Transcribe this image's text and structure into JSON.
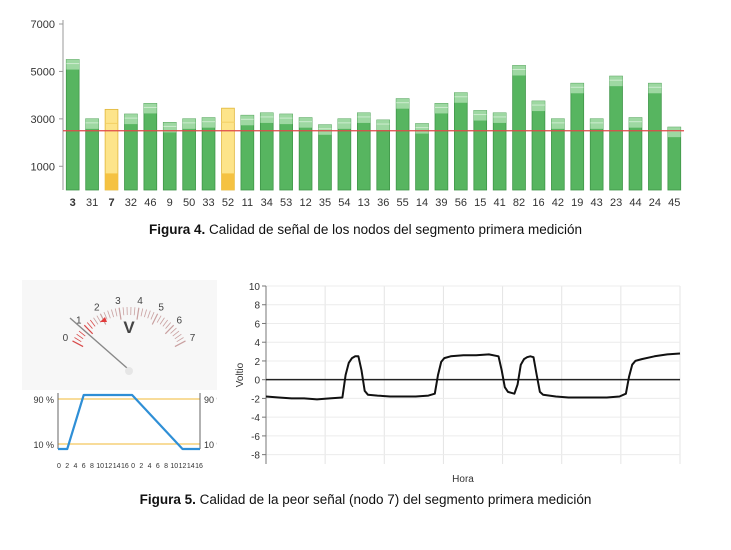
{
  "figure4": {
    "caption_label": "Figura 4.",
    "caption_text": " Calidad de señal de los nodos del segmento primera medición"
  },
  "figure5": {
    "caption_label": "Figura 5.",
    "caption_text": " Calidad de la peor señal (nodo 7) del segmento primera medición",
    "meter": {
      "unit": "V",
      "scale_labels": [
        "0",
        "1",
        "2",
        "3",
        "4",
        "5",
        "6",
        "7"
      ]
    },
    "ramp": {
      "left_labels": [
        "90 %",
        "10 %"
      ],
      "right_labels": [
        "90 %",
        "10 %"
      ],
      "x_ticks": [
        "0",
        "2",
        "4",
        "6",
        "8",
        "10",
        "12",
        "14",
        "16",
        "0",
        "2",
        "4",
        "6",
        "8",
        "10",
        "12",
        "14",
        "16"
      ]
    }
  },
  "chart_data": [
    {
      "type": "bar",
      "title": "",
      "xlabel": "",
      "ylabel": "",
      "ylim": [
        0,
        7000
      ],
      "y_ticks": [
        1000,
        3000,
        5000,
        7000
      ],
      "y_tick_labels": [
        "1000",
        "3000",
        "5000",
        "7000"
      ],
      "threshold": 2500,
      "threshold_color": "#e04848",
      "categories": [
        "3",
        "31",
        "7",
        "32",
        "46",
        "9",
        "50",
        "33",
        "52",
        "11",
        "34",
        "53",
        "12",
        "35",
        "54",
        "13",
        "36",
        "55",
        "14",
        "39",
        "56",
        "15",
        "41",
        "82",
        "16",
        "42",
        "19",
        "43",
        "23",
        "44",
        "24",
        "45"
      ],
      "bold_categories": [
        "3",
        "7"
      ],
      "warning_categories": [
        "7",
        "52"
      ],
      "values": [
        5500,
        3000,
        3400,
        3200,
        3650,
        2850,
        3000,
        3050,
        3450,
        3150,
        3250,
        3200,
        3050,
        2750,
        3000,
        3250,
        2950,
        3850,
        2800,
        3650,
        4100,
        3350,
        3250,
        5250,
        3750,
        3000,
        4500,
        3000,
        4800,
        3050,
        4500,
        2650
      ],
      "colors": {
        "good": "#57b560",
        "good_top": "#9ed8a2",
        "warning": "#fde48a",
        "warning_bottom": "#f5c242"
      }
    },
    {
      "type": "line",
      "title": "",
      "xlabel": "Hora",
      "ylabel": "Voltio",
      "ylim": [
        -9,
        10
      ],
      "y_ticks": [
        10,
        8,
        6,
        4,
        2,
        0,
        -2,
        -4,
        -6,
        -8
      ],
      "y_tick_labels": [
        "10",
        "8",
        "6",
        "4",
        "2",
        "0",
        "-2",
        "-4",
        "-6",
        "-8"
      ],
      "baseline": 0,
      "x": [
        0,
        4,
        8,
        12,
        16,
        20,
        24,
        25,
        26,
        27,
        28,
        29,
        30,
        31,
        32,
        35,
        39,
        43,
        47,
        51,
        53,
        54,
        55,
        56,
        58,
        62,
        66,
        70,
        73,
        74,
        75,
        76,
        77,
        78,
        79,
        80,
        81,
        82,
        83,
        84,
        85,
        86,
        87,
        91,
        95,
        99,
        103,
        107,
        111,
        113,
        114,
        115,
        116,
        118,
        122,
        126,
        130
      ],
      "values": [
        -1.8,
        -1.9,
        -2.0,
        -2.0,
        -2.1,
        -2.0,
        -1.9,
        0.5,
        1.8,
        2.3,
        2.5,
        2.5,
        1.0,
        -1.2,
        -1.6,
        -1.7,
        -1.8,
        -1.8,
        -1.8,
        -1.7,
        -1.5,
        0.5,
        1.9,
        2.3,
        2.5,
        2.6,
        2.6,
        2.7,
        2.5,
        1.0,
        -0.8,
        -1.3,
        -1.4,
        -1.5,
        -0.5,
        1.6,
        2.2,
        2.4,
        2.5,
        2.4,
        0.5,
        -1.3,
        -1.6,
        -1.8,
        -1.9,
        -1.9,
        -1.9,
        -1.9,
        -1.8,
        -1.5,
        0.3,
        1.6,
        2.0,
        2.2,
        2.5,
        2.7,
        2.8
      ],
      "xlim": [
        0,
        130
      ]
    }
  ]
}
